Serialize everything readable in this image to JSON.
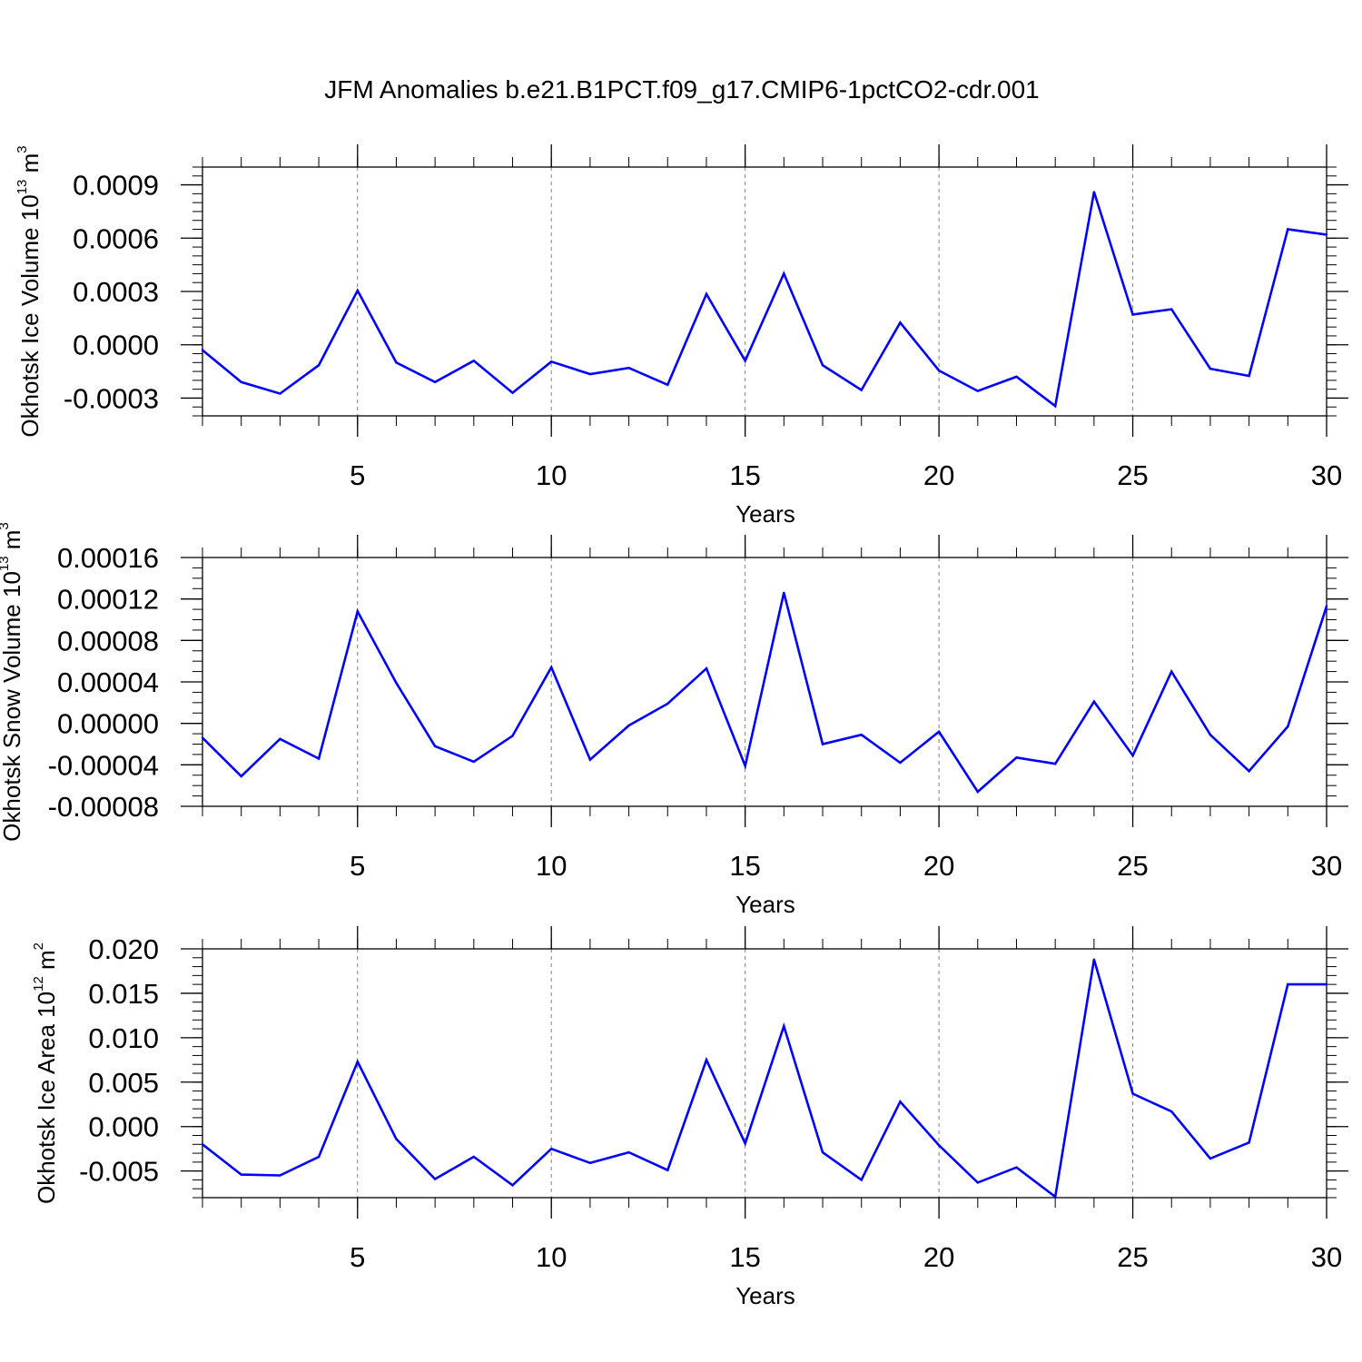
{
  "title": "JFM Anomalies b.e21.B1PCT.f09_g17.CMIP6-1pctCO2-cdr.001",
  "colors": {
    "line": "#0000ff",
    "axis": "#000000",
    "grid": "#808080"
  },
  "chart_data": [
    {
      "type": "line",
      "title": "",
      "xlabel": "Years",
      "ylabel": {
        "text": "Okhotsk Ice Volume 10",
        "sup": "13",
        "unit": "m",
        "unit_sup": "3"
      },
      "xlim": [
        1,
        30
      ],
      "ylim": [
        -0.0004,
        0.001
      ],
      "xticks": [
        5,
        10,
        15,
        20,
        25,
        30
      ],
      "xtick_labels": [
        "5",
        "10",
        "15",
        "20",
        "25",
        "30"
      ],
      "yticks": [
        -0.0003,
        0.0,
        0.0003,
        0.0006,
        0.0009
      ],
      "ytick_labels": [
        "-0.0003",
        "0.0000",
        "0.0003",
        "0.0006",
        "0.0009"
      ],
      "grid": "vertical dashed at major x ticks",
      "series": [
        {
          "name": "Okhotsk Ice Volume",
          "x": [
            1,
            2,
            3,
            4,
            5,
            6,
            7,
            8,
            9,
            10,
            11,
            12,
            13,
            14,
            15,
            16,
            17,
            18,
            19,
            20,
            21,
            22,
            23,
            24,
            25,
            26,
            27,
            28,
            29,
            30
          ],
          "values": [
            -3e-05,
            -0.00021,
            -0.000275,
            -0.000115,
            0.000305,
            -0.0001,
            -0.00021,
            -9e-05,
            -0.00027,
            -9.5e-05,
            -0.000165,
            -0.00013,
            -0.000225,
            0.000285,
            -9e-05,
            0.0004,
            -0.000115,
            -0.000255,
            0.000125,
            -0.000145,
            -0.00026,
            -0.00018,
            -0.000345,
            0.00086,
            0.00017,
            0.0002,
            -0.000135,
            -0.000175,
            0.00065,
            0.00062
          ]
        }
      ]
    },
    {
      "type": "line",
      "title": "",
      "xlabel": "Years",
      "ylabel": {
        "text": "Okhotsk Snow Volume 10",
        "sup": "13",
        "unit": "m",
        "unit_sup": "3"
      },
      "xlim": [
        1,
        30
      ],
      "ylim": [
        -8e-05,
        0.00016
      ],
      "xticks": [
        5,
        10,
        15,
        20,
        25,
        30
      ],
      "xtick_labels": [
        "5",
        "10",
        "15",
        "20",
        "25",
        "30"
      ],
      "yticks": [
        -8e-05,
        -4e-05,
        0.0,
        4e-05,
        8e-05,
        0.00012,
        0.00016
      ],
      "ytick_labels": [
        "-0.00008",
        "-0.00004",
        "0.00000",
        "0.00004",
        "0.00008",
        "0.00012",
        "0.00016"
      ],
      "grid": "vertical dashed at major x ticks",
      "series": [
        {
          "name": "Okhotsk Snow Volume",
          "x": [
            1,
            2,
            3,
            4,
            5,
            6,
            7,
            8,
            9,
            10,
            11,
            12,
            13,
            14,
            15,
            16,
            17,
            18,
            19,
            20,
            21,
            22,
            23,
            24,
            25,
            26,
            27,
            28,
            29,
            30
          ],
          "values": [
            -1.4e-05,
            -5.1e-05,
            -1.5e-05,
            -3.4e-05,
            0.000108,
            3.9e-05,
            -2.2e-05,
            -3.7e-05,
            -1.2e-05,
            5.4e-05,
            -3.5e-05,
            -2e-06,
            1.9e-05,
            5.3e-05,
            -4.1e-05,
            0.000126,
            -2e-05,
            -1.1e-05,
            -3.8e-05,
            -8e-06,
            -6.6e-05,
            -3.3e-05,
            -3.9e-05,
            2.1e-05,
            -3.1e-05,
            5e-05,
            -1.1e-05,
            -4.6e-05,
            -3e-06,
            0.000113
          ]
        }
      ]
    },
    {
      "type": "line",
      "title": "",
      "xlabel": "Years",
      "ylabel": {
        "text": "Okhotsk Ice Area 10",
        "sup": "12",
        "unit": "m",
        "unit_sup": "2"
      },
      "xlim": [
        1,
        30
      ],
      "ylim": [
        -0.008,
        0.02
      ],
      "xticks": [
        5,
        10,
        15,
        20,
        25,
        30
      ],
      "xtick_labels": [
        "5",
        "10",
        "15",
        "20",
        "25",
        "30"
      ],
      "yticks": [
        -0.005,
        0.0,
        0.005,
        0.01,
        0.015,
        0.02
      ],
      "ytick_labels": [
        "-0.005",
        "0.000",
        "0.005",
        "0.010",
        "0.015",
        "0.020"
      ],
      "grid": "vertical dashed at major x ticks",
      "series": [
        {
          "name": "Okhotsk Ice Area",
          "x": [
            1,
            2,
            3,
            4,
            5,
            6,
            7,
            8,
            9,
            10,
            11,
            12,
            13,
            14,
            15,
            16,
            17,
            18,
            19,
            20,
            21,
            22,
            23,
            24,
            25,
            26,
            27,
            28,
            29,
            30
          ],
          "values": [
            -0.002,
            -0.0054,
            -0.0055,
            -0.0034,
            0.0073,
            -0.0014,
            -0.0059,
            -0.0034,
            -0.0066,
            -0.0025,
            -0.0041,
            -0.0029,
            -0.0049,
            0.0075,
            -0.0019,
            0.0113,
            -0.0029,
            -0.006,
            0.0028,
            -0.0021,
            -0.0063,
            -0.0046,
            -0.0079,
            0.0188,
            0.0037,
            0.0017,
            -0.0036,
            -0.0018,
            0.016,
            0.016
          ]
        }
      ]
    }
  ]
}
